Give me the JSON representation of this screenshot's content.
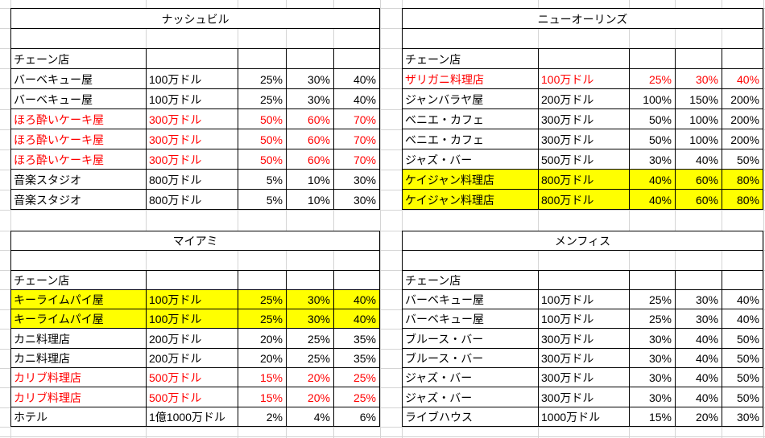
{
  "colors": {
    "red_text": "#ff0000",
    "yellow_highlight": "#ffff00",
    "cell_border": "#000000",
    "gridline": "#d4d4d4",
    "text": "#000000",
    "background": "#ffffff"
  },
  "tables": [
    {
      "title": "ナッシュビル",
      "section_label": "チェーン店",
      "rows": [
        {
          "name": "バーベキュー屋",
          "price": "100万ドル",
          "p1": "25%",
          "p2": "30%",
          "p3": "40%",
          "style": "normal"
        },
        {
          "name": "バーベキュー屋",
          "price": "100万ドル",
          "p1": "25%",
          "p2": "30%",
          "p3": "40%",
          "style": "normal"
        },
        {
          "name": "ほろ酔いケーキ屋",
          "price": "300万ドル",
          "p1": "50%",
          "p2": "60%",
          "p3": "70%",
          "style": "red"
        },
        {
          "name": "ほろ酔いケーキ屋",
          "price": "300万ドル",
          "p1": "50%",
          "p2": "60%",
          "p3": "70%",
          "style": "red"
        },
        {
          "name": "ほろ酔いケーキ屋",
          "price": "300万ドル",
          "p1": "50%",
          "p2": "60%",
          "p3": "70%",
          "style": "red"
        },
        {
          "name": "音楽スタジオ",
          "price": "800万ドル",
          "p1": "5%",
          "p2": "10%",
          "p3": "30%",
          "style": "normal"
        },
        {
          "name": "音楽スタジオ",
          "price": "800万ドル",
          "p1": "5%",
          "p2": "10%",
          "p3": "30%",
          "style": "normal"
        }
      ]
    },
    {
      "title": "ニューオーリンズ",
      "section_label": "チェーン店",
      "rows": [
        {
          "name": "ザリガニ料理店",
          "price": "100万ドル",
          "p1": "25%",
          "p2": "30%",
          "p3": "40%",
          "style": "red"
        },
        {
          "name": "ジャンバラヤ屋",
          "price": "200万ドル",
          "p1": "100%",
          "p2": "150%",
          "p3": "200%",
          "style": "normal"
        },
        {
          "name": "ベニエ・カフェ",
          "price": "300万ドル",
          "p1": "50%",
          "p2": "100%",
          "p3": "200%",
          "style": "normal"
        },
        {
          "name": "ベニエ・カフェ",
          "price": "300万ドル",
          "p1": "50%",
          "p2": "100%",
          "p3": "200%",
          "style": "normal"
        },
        {
          "name": "ジャズ・バー",
          "price": "500万ドル",
          "p1": "30%",
          "p2": "40%",
          "p3": "50%",
          "style": "normal"
        },
        {
          "name": "ケイジャン料理店",
          "price": "800万ドル",
          "p1": "40%",
          "p2": "60%",
          "p3": "80%",
          "style": "yellow"
        },
        {
          "name": "ケイジャン料理店",
          "price": "800万ドル",
          "p1": "40%",
          "p2": "60%",
          "p3": "80%",
          "style": "yellow"
        }
      ]
    },
    {
      "title": "マイアミ",
      "section_label": "チェーン店",
      "rows": [
        {
          "name": "キーライムパイ屋",
          "price": "100万ドル",
          "p1": "25%",
          "p2": "30%",
          "p3": "40%",
          "style": "yellow"
        },
        {
          "name": "キーライムパイ屋",
          "price": "100万ドル",
          "p1": "25%",
          "p2": "30%",
          "p3": "40%",
          "style": "yellow"
        },
        {
          "name": "カニ料理店",
          "price": "200万ドル",
          "p1": "20%",
          "p2": "25%",
          "p3": "35%",
          "style": "normal"
        },
        {
          "name": "カニ料理店",
          "price": "200万ドル",
          "p1": "20%",
          "p2": "25%",
          "p3": "35%",
          "style": "normal"
        },
        {
          "name": "カリブ料理店",
          "price": "500万ドル",
          "p1": "15%",
          "p2": "20%",
          "p3": "25%",
          "style": "red"
        },
        {
          "name": "カリブ料理店",
          "price": "500万ドル",
          "p1": "15%",
          "p2": "20%",
          "p3": "25%",
          "style": "red"
        },
        {
          "name": "ホテル",
          "price": "1億1000万ドル",
          "p1": "2%",
          "p2": "4%",
          "p3": "6%",
          "style": "normal"
        }
      ]
    },
    {
      "title": "メンフィス",
      "section_label": "チェーン店",
      "rows": [
        {
          "name": "バーベキュー屋",
          "price": "100万ドル",
          "p1": "25%",
          "p2": "30%",
          "p3": "40%",
          "style": "normal"
        },
        {
          "name": "バーベキュー屋",
          "price": "100万ドル",
          "p1": "25%",
          "p2": "30%",
          "p3": "40%",
          "style": "normal"
        },
        {
          "name": "ブルース・バー",
          "price": "300万ドル",
          "p1": "30%",
          "p2": "40%",
          "p3": "50%",
          "style": "normal"
        },
        {
          "name": "ブルース・バー",
          "price": "300万ドル",
          "p1": "30%",
          "p2": "40%",
          "p3": "50%",
          "style": "normal"
        },
        {
          "name": "ジャズ・バー",
          "price": "300万ドル",
          "p1": "30%",
          "p2": "40%",
          "p3": "50%",
          "style": "normal"
        },
        {
          "name": "ジャズ・バー",
          "price": "300万ドル",
          "p1": "30%",
          "p2": "40%",
          "p3": "50%",
          "style": "normal"
        },
        {
          "name": "ライブハウス",
          "price": "1000万ドル",
          "p1": "15%",
          "p2": "20%",
          "p3": "30%",
          "style": "normal"
        }
      ]
    }
  ]
}
